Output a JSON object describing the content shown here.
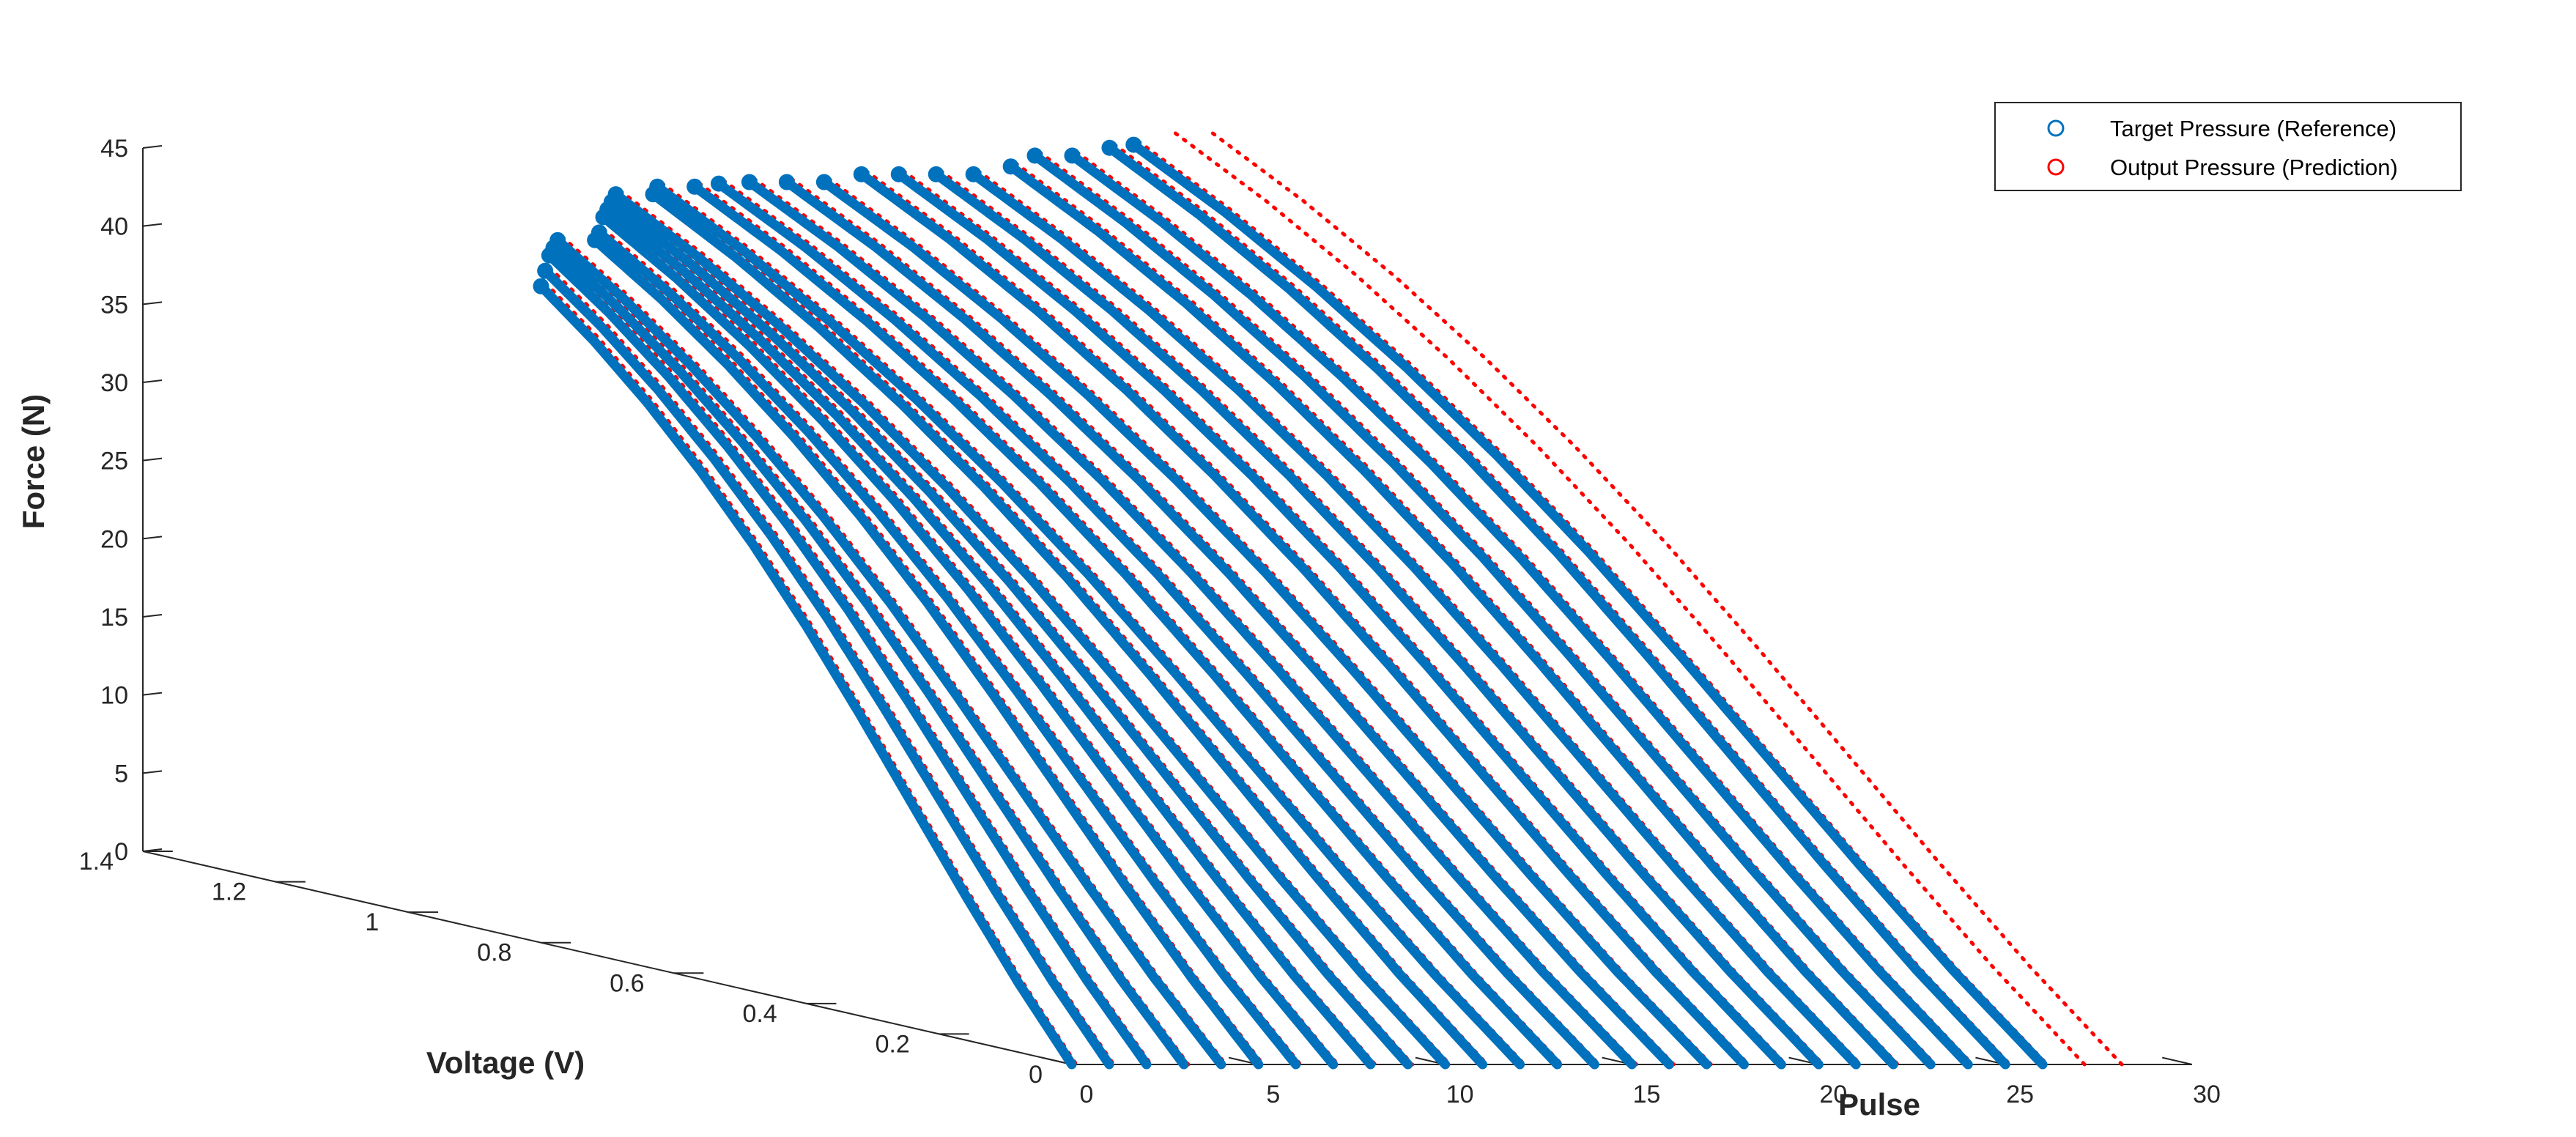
{
  "chart_data": {
    "type": "line3d",
    "title": "",
    "xlabel": "Pulse",
    "ylabel": "Voltage (V)",
    "zlabel": "Force (N)",
    "xlim": [
      0,
      30
    ],
    "ylim": [
      0,
      1.4
    ],
    "zlim": [
      0,
      45
    ],
    "xticks": [
      "0",
      "5",
      "10",
      "15",
      "20",
      "25",
      "30"
    ],
    "yticks": [
      "0",
      "0.2",
      "0.4",
      "0.6",
      "0.8",
      "1",
      "1.2",
      "1.4"
    ],
    "zticks": [
      "0",
      "5",
      "10",
      "15",
      "20",
      "25",
      "30",
      "35",
      "40",
      "45"
    ],
    "grid": false,
    "legend_position": "top-right",
    "series": [
      {
        "name": "Target Pressure (Reference)",
        "color": "#0072BD",
        "marker": "circle"
      },
      {
        "name": "Output Pressure (Prediction)",
        "color": "#FF0000",
        "marker": "circle"
      }
    ],
    "pulses": [
      0,
      1,
      2,
      3,
      4,
      5,
      6,
      7,
      8,
      9,
      10,
      11,
      12,
      13,
      14,
      15,
      16,
      17,
      18,
      19,
      20,
      21,
      22,
      23,
      24,
      25,
      26,
      27,
      28
    ],
    "voltage_per_pulse": [
      0.8,
      0.85,
      0.9,
      0.95,
      1.0,
      1.0,
      1.05,
      1.1,
      1.15,
      1.2,
      1.25,
      1.25,
      1.3,
      1.3,
      1.32,
      1.33,
      1.33,
      1.33,
      1.33,
      1.33,
      1.33,
      1.33,
      1.33,
      1.35,
      1.35,
      1.35,
      1.37,
      1.37,
      1.37
    ],
    "peak_force_per_pulse": [
      42,
      42.5,
      43,
      43,
      43,
      43,
      43,
      43.5,
      43.5,
      43.5,
      43.5,
      43.5,
      43.5,
      43.5,
      43.5,
      43.5,
      43.5,
      43.5,
      44,
      44,
      44,
      44,
      44.5,
      45,
      45,
      45.5,
      45.5,
      46,
      46
    ],
    "curve_profile": {
      "u": [
        0,
        0.1,
        0.2,
        0.3,
        0.4,
        0.5,
        0.6,
        0.7,
        0.8,
        0.9,
        1.0
      ],
      "force_fraction": [
        1.0,
        0.935,
        0.86,
        0.775,
        0.68,
        0.575,
        0.46,
        0.34,
        0.22,
        0.105,
        0.0
      ]
    },
    "prediction_only_pulses": [
      27,
      28
    ]
  }
}
